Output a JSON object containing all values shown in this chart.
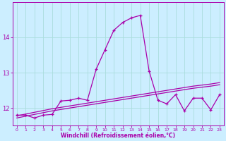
{
  "xlabel": "Windchill (Refroidissement éolien,°C)",
  "bg_color": "#cceeff",
  "grid_color": "#aadddd",
  "line_color": "#aa00aa",
  "x": [
    0,
    1,
    2,
    3,
    4,
    5,
    6,
    7,
    8,
    9,
    10,
    11,
    12,
    13,
    14,
    15,
    16,
    17,
    18,
    19,
    20,
    21,
    22,
    23
  ],
  "y_main": [
    11.8,
    11.8,
    11.72,
    11.8,
    11.82,
    12.2,
    12.22,
    12.28,
    12.22,
    13.1,
    13.65,
    14.2,
    14.42,
    14.55,
    14.62,
    13.05,
    12.22,
    12.12,
    12.38,
    11.92,
    12.28,
    12.28,
    11.95,
    12.38
  ],
  "y_trendA": [
    11.78,
    11.83,
    11.88,
    11.93,
    11.98,
    12.02,
    12.06,
    12.1,
    12.14,
    12.18,
    12.22,
    12.26,
    12.3,
    12.34,
    12.38,
    12.42,
    12.46,
    12.5,
    12.54,
    12.58,
    12.62,
    12.65,
    12.68,
    12.72
  ],
  "y_trendB": [
    11.72,
    11.77,
    11.82,
    11.87,
    11.92,
    11.96,
    12.0,
    12.04,
    12.08,
    12.12,
    12.16,
    12.2,
    12.24,
    12.28,
    12.32,
    12.36,
    12.4,
    12.44,
    12.48,
    12.52,
    12.56,
    12.59,
    12.62,
    12.66
  ],
  "ylim": [
    11.5,
    15.0
  ],
  "yticks": [
    12,
    13,
    14
  ],
  "xlim": [
    -0.5,
    23.5
  ]
}
